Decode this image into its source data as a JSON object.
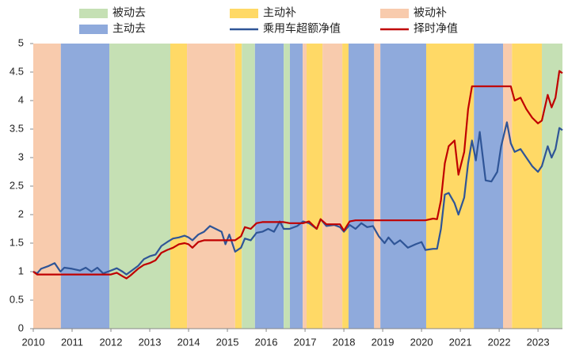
{
  "chart_data": {
    "type": "line",
    "phases": [
      {
        "name": "被动去",
        "color": "#c5e0b4"
      },
      {
        "name": "主动补",
        "color": "#ffd966"
      },
      {
        "name": "被动补",
        "color": "#f8cbad"
      },
      {
        "name": "主动去",
        "color": "#8faadc"
      }
    ],
    "regions": [
      {
        "phase": "被动补",
        "x": [
          2010,
          2010.71
        ]
      },
      {
        "phase": "主动去",
        "x": [
          2010.71,
          2011.96
        ]
      },
      {
        "phase": "被动去",
        "x": [
          2011.96,
          2013.53
        ]
      },
      {
        "phase": "主动补",
        "x": [
          2013.53,
          2013.96
        ]
      },
      {
        "phase": "被动补",
        "x": [
          2013.96,
          2015.2
        ]
      },
      {
        "phase": "主动补",
        "x": [
          2015.2,
          2015.37
        ]
      },
      {
        "phase": "被动去",
        "x": [
          2015.37,
          2015.71
        ]
      },
      {
        "phase": "主动去",
        "x": [
          2015.71,
          2016.45
        ]
      },
      {
        "phase": "被动去",
        "x": [
          2016.45,
          2016.61
        ]
      },
      {
        "phase": "主动去",
        "x": [
          2016.61,
          2016.94
        ]
      },
      {
        "phase": "被动补",
        "x": [
          2016.94,
          2017.04
        ]
      },
      {
        "phase": "主动补",
        "x": [
          2017.04,
          2017.45
        ]
      },
      {
        "phase": "被动补",
        "x": [
          2017.45,
          2017.96
        ]
      },
      {
        "phase": "主动补",
        "x": [
          2017.96,
          2018.12
        ]
      },
      {
        "phase": "主动去",
        "x": [
          2018.12,
          2018.78
        ]
      },
      {
        "phase": "被动补",
        "x": [
          2018.78,
          2018.94
        ]
      },
      {
        "phase": "主动去",
        "x": [
          2018.94,
          2020.12
        ]
      },
      {
        "phase": "主动补",
        "x": [
          2020.12,
          2021.35
        ]
      },
      {
        "phase": "主动去",
        "x": [
          2021.35,
          2022.1
        ]
      },
      {
        "phase": "被动补",
        "x": [
          2022.1,
          2022.33
        ]
      },
      {
        "phase": "主动补",
        "x": [
          2022.33,
          2023.1
        ]
      },
      {
        "phase": "被动去",
        "x": [
          2023.1,
          2023.63
        ]
      }
    ],
    "x": [
      2010,
      2010.1,
      2010.2,
      2010.4,
      2010.55,
      2010.7,
      2010.8,
      2011,
      2011.2,
      2011.35,
      2011.5,
      2011.65,
      2011.8,
      2012,
      2012.15,
      2012.3,
      2012.4,
      2012.5,
      2012.7,
      2012.85,
      2013,
      2013.15,
      2013.3,
      2013.45,
      2013.6,
      2013.75,
      2013.9,
      2014,
      2014.1,
      2014.25,
      2014.4,
      2014.55,
      2014.7,
      2014.85,
      2014.95,
      2015.05,
      2015.2,
      2015.35,
      2015.45,
      2015.6,
      2015.75,
      2015.9,
      2016.05,
      2016.2,
      2016.35,
      2016.45,
      2016.6,
      2016.8,
      2016.95,
      2017.1,
      2017.3,
      2017.4,
      2017.55,
      2017.75,
      2017.9,
      2018,
      2018.15,
      2018.3,
      2018.45,
      2018.6,
      2018.75,
      2018.9,
      2019.05,
      2019.15,
      2019.3,
      2019.45,
      2019.65,
      2019.85,
      2020,
      2020.1,
      2020.3,
      2020.4,
      2020.5,
      2020.6,
      2020.7,
      2020.85,
      2020.95,
      2021.1,
      2021.2,
      2021.3,
      2021.4,
      2021.5,
      2021.65,
      2021.8,
      2021.95,
      2022.05,
      2022.2,
      2022.3,
      2022.4,
      2022.55,
      2022.7,
      2022.85,
      2023,
      2023.1,
      2023.25,
      2023.35,
      2023.45,
      2023.55,
      2023.63
    ],
    "series": [
      {
        "name": "乘用车超额净值",
        "color": "#2f5597",
        "values": [
          1.0,
          0.97,
          1.05,
          1.1,
          1.15,
          1.0,
          1.07,
          1.05,
          1.02,
          1.07,
          1.0,
          1.07,
          0.97,
          1.02,
          1.06,
          1.0,
          0.95,
          1.0,
          1.1,
          1.22,
          1.27,
          1.3,
          1.45,
          1.52,
          1.58,
          1.6,
          1.63,
          1.6,
          1.55,
          1.65,
          1.7,
          1.8,
          1.75,
          1.7,
          1.48,
          1.65,
          1.35,
          1.42,
          1.58,
          1.55,
          1.68,
          1.7,
          1.75,
          1.7,
          1.88,
          1.75,
          1.75,
          1.8,
          1.88,
          1.85,
          1.75,
          1.92,
          1.8,
          1.82,
          1.78,
          1.7,
          1.82,
          1.75,
          1.85,
          1.78,
          1.8,
          1.62,
          1.5,
          1.6,
          1.48,
          1.55,
          1.42,
          1.48,
          1.52,
          1.38,
          1.4,
          1.4,
          1.75,
          2.35,
          2.38,
          2.2,
          2.0,
          2.3,
          2.9,
          3.3,
          2.95,
          3.45,
          2.6,
          2.58,
          2.75,
          3.2,
          3.62,
          3.25,
          3.1,
          3.15,
          3.0,
          2.85,
          2.75,
          2.85,
          3.2,
          3.0,
          3.15,
          3.52,
          3.48
        ]
      },
      {
        "name": "择时净值",
        "color": "#c00000",
        "values": [
          1.0,
          0.95,
          0.95,
          0.95,
          0.95,
          0.95,
          0.95,
          0.95,
          0.95,
          0.95,
          0.95,
          0.95,
          0.95,
          0.95,
          0.98,
          0.92,
          0.88,
          0.93,
          1.05,
          1.12,
          1.15,
          1.2,
          1.33,
          1.38,
          1.42,
          1.48,
          1.5,
          1.48,
          1.42,
          1.52,
          1.55,
          1.55,
          1.55,
          1.55,
          1.55,
          1.55,
          1.55,
          1.62,
          1.78,
          1.75,
          1.85,
          1.87,
          1.87,
          1.87,
          1.87,
          1.87,
          1.85,
          1.85,
          1.85,
          1.88,
          1.75,
          1.92,
          1.83,
          1.83,
          1.83,
          1.72,
          1.88,
          1.9,
          1.9,
          1.9,
          1.9,
          1.9,
          1.9,
          1.9,
          1.9,
          1.9,
          1.9,
          1.9,
          1.9,
          1.9,
          1.93,
          1.92,
          2.25,
          2.9,
          3.2,
          3.3,
          2.7,
          3.1,
          3.85,
          4.25,
          4.25,
          4.25,
          4.25,
          4.25,
          4.25,
          4.25,
          4.25,
          4.25,
          4.0,
          4.05,
          3.85,
          3.7,
          3.6,
          3.65,
          4.1,
          3.88,
          4.05,
          4.52,
          4.48
        ]
      }
    ],
    "xlim": [
      2010,
      2023.63
    ],
    "xticks": [
      2010,
      2011,
      2012,
      2013,
      2014,
      2015,
      2016,
      2017,
      2018,
      2019,
      2020,
      2021,
      2022,
      2023
    ],
    "ylim": [
      0,
      5
    ],
    "yticks": [
      0,
      0.5,
      1,
      1.5,
      2,
      2.5,
      3,
      3.5,
      4,
      4.5,
      5
    ]
  }
}
